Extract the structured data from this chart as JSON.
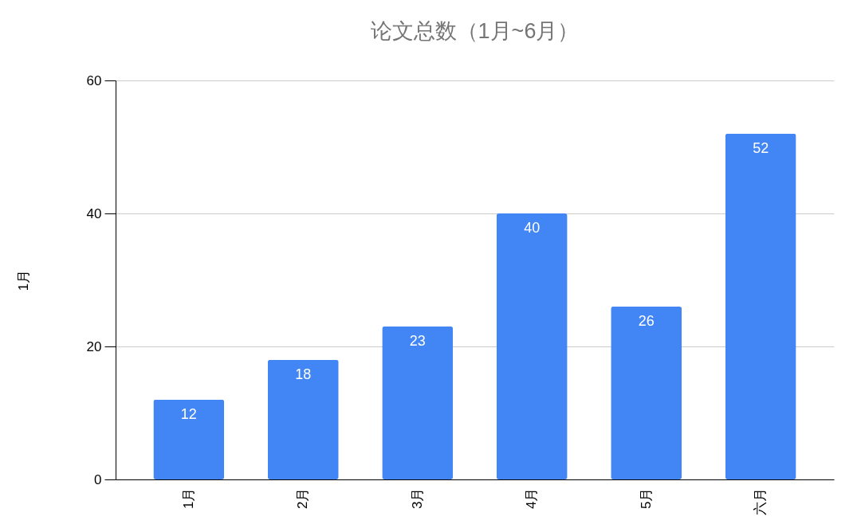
{
  "chart_data": {
    "type": "bar",
    "title": "论文总数（1月~6月）",
    "ylabel": "1月",
    "categories": [
      "1月",
      "2月",
      "3月",
      "4月",
      "5月",
      "六月"
    ],
    "values": [
      12,
      18,
      23,
      40,
      26,
      52
    ],
    "color": "#4285f4",
    "ylim": [
      0,
      60
    ],
    "yticks": [
      0,
      20,
      40,
      60
    ],
    "grid": "y",
    "data_labels": true
  }
}
